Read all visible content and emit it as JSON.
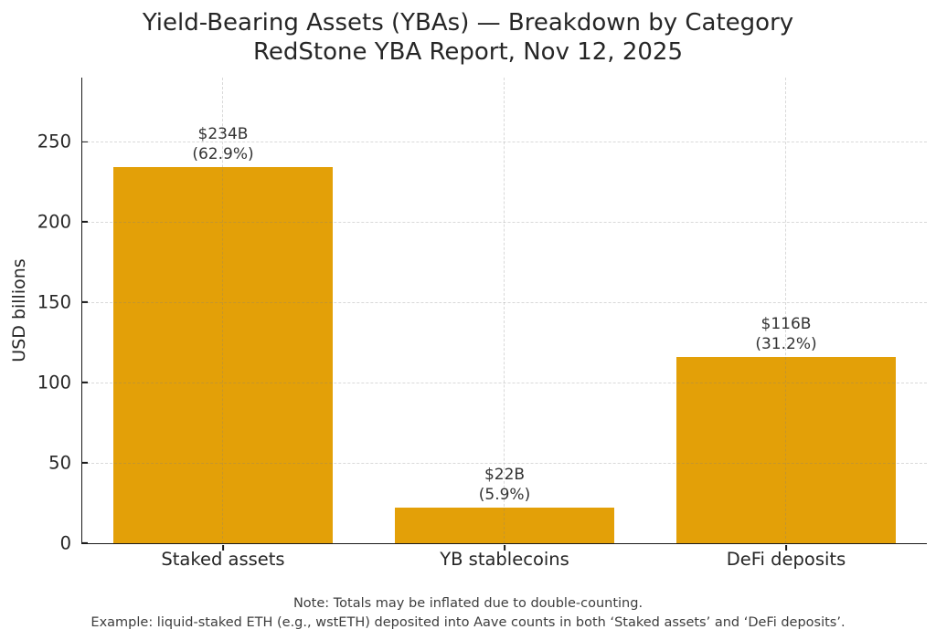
{
  "chart_data": {
    "type": "bar",
    "title": "Yield-Bearing Assets (YBAs) — Breakdown by Category",
    "subtitle": "RedStone YBA Report, Nov 12, 2025",
    "categories": [
      "Staked assets",
      "YB stablecoins",
      "DeFi deposits"
    ],
    "values": [
      234,
      22,
      116
    ],
    "bar_labels": [
      {
        "value": "$234B",
        "pct": "(62.9%)"
      },
      {
        "value": "$22B",
        "pct": "(5.9%)"
      },
      {
        "value": "$116B",
        "pct": "(31.2%)"
      }
    ],
    "xlabel": "",
    "ylabel": "USD billions",
    "ylim": [
      0,
      290
    ],
    "yticks": [
      0,
      50,
      100,
      150,
      200,
      250
    ],
    "grid": "dashed, horizontal at yticks and vertical at category centers, drawn faintly over bars",
    "legend": "none",
    "bar_color": "#E3A008",
    "footnote": [
      "Note: Totals may be inflated due to double-counting.",
      "Example: liquid-staked ETH (e.g., wstETH) deposited into Aave counts in both ‘Staked assets’ and ‘DeFi deposits’."
    ]
  },
  "colors": {
    "bar": "#E3A008",
    "grid": "#DCDCDC",
    "axis": "#1A1A1A",
    "title_text": "#262626",
    "note_text": "#3D3D3D",
    "background": "#FFFFFF"
  }
}
